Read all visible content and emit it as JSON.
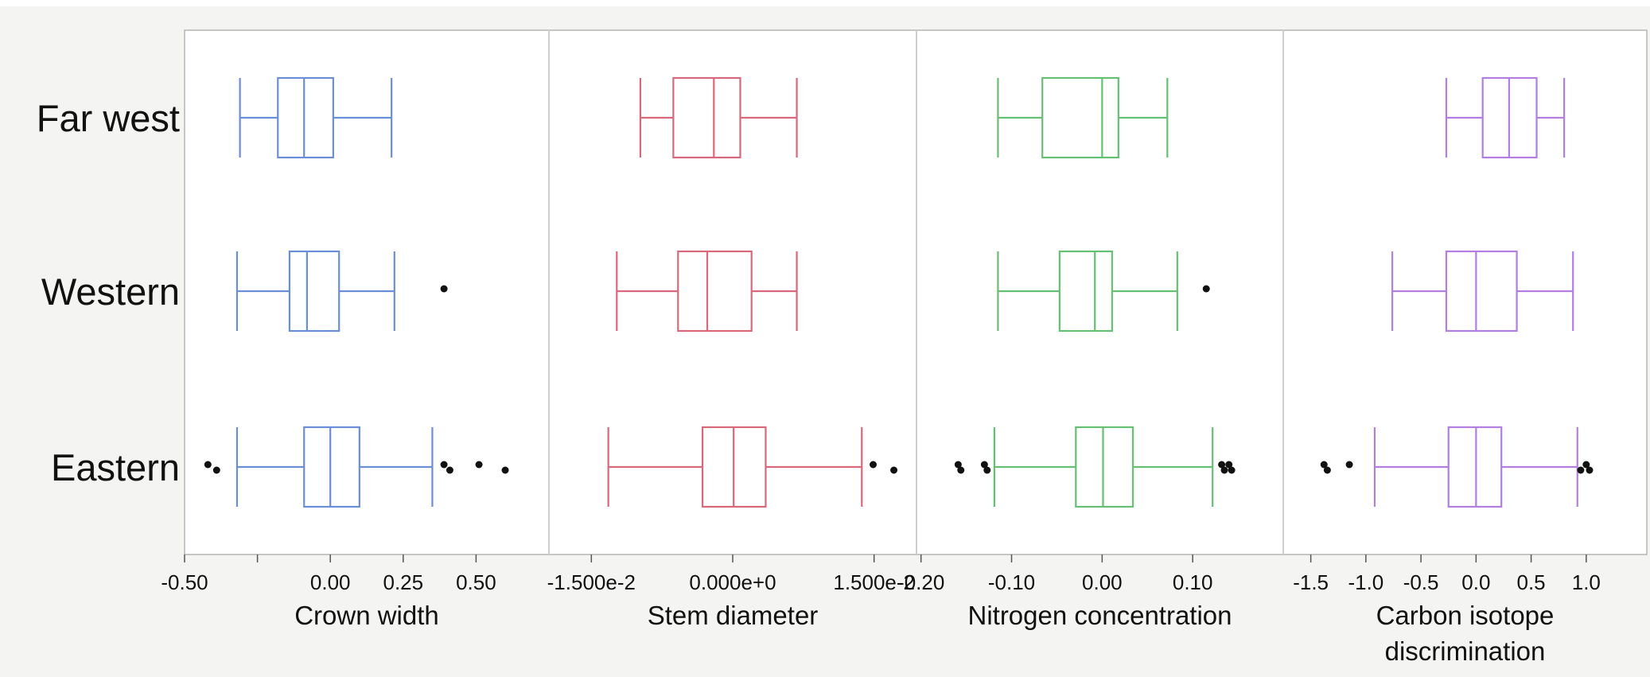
{
  "chart_data": {
    "type": "boxplot",
    "categories": [
      "Far west",
      "Western",
      "Eastern"
    ],
    "panels": [
      {
        "xlabel": [
          "Crown width"
        ],
        "color": "#6b8fd6",
        "xlim": [
          -0.5,
          0.75
        ],
        "ticks": [
          {
            "v": -0.5,
            "label": "-0.50"
          },
          {
            "v": -0.25,
            "label": ""
          },
          {
            "v": 0.0,
            "label": "0.00"
          },
          {
            "v": 0.25,
            "label": "0.25"
          },
          {
            "v": 0.5,
            "label": "0.50"
          }
        ],
        "boxes": [
          {
            "whisker_low": -0.31,
            "q1": -0.18,
            "median": -0.09,
            "q3": 0.01,
            "whisker_high": 0.21,
            "outliers": []
          },
          {
            "whisker_low": -0.32,
            "q1": -0.14,
            "median": -0.08,
            "q3": 0.03,
            "whisker_high": 0.22,
            "outliers": [
              0.39
            ]
          },
          {
            "whisker_low": -0.32,
            "q1": -0.09,
            "median": 0.0,
            "q3": 0.1,
            "whisker_high": 0.35,
            "outliers": [
              -0.42,
              -0.39,
              0.39,
              0.41,
              0.51,
              0.6
            ]
          }
        ]
      },
      {
        "xlabel": [
          "Stem diameter"
        ],
        "color": "#d9687a",
        "xlim": [
          -0.0195,
          0.0195
        ],
        "ticks": [
          {
            "v": -0.015,
            "label": "-1.500e-2"
          },
          {
            "v": 0.0,
            "label": "0.000e+0"
          },
          {
            "v": 0.015,
            "label": "1.500e-2"
          }
        ],
        "boxes": [
          {
            "whisker_low": -0.0098,
            "q1": -0.0063,
            "median": -0.002,
            "q3": 0.0008,
            "whisker_high": 0.0068,
            "outliers": []
          },
          {
            "whisker_low": -0.0123,
            "q1": -0.0058,
            "median": -0.0027,
            "q3": 0.002,
            "whisker_high": 0.0068,
            "outliers": []
          },
          {
            "whisker_low": -0.0132,
            "q1": -0.0032,
            "median": 0.0001,
            "q3": 0.0035,
            "whisker_high": 0.0137,
            "outliers": [
              0.0149,
              0.0171
            ]
          }
        ]
      },
      {
        "xlabel": [
          "Nitrogen concentration"
        ],
        "color": "#66c073",
        "xlim": [
          -0.205,
          0.2
        ],
        "ticks": [
          {
            "v": -0.2,
            "label": "-0.20"
          },
          {
            "v": -0.1,
            "label": "-0.10"
          },
          {
            "v": 0.0,
            "label": "0.00"
          },
          {
            "v": 0.1,
            "label": "0.10"
          }
        ],
        "boxes": [
          {
            "whisker_low": -0.115,
            "q1": -0.066,
            "median": 0.0,
            "q3": 0.018,
            "whisker_high": 0.072,
            "outliers": []
          },
          {
            "whisker_low": -0.115,
            "q1": -0.047,
            "median": -0.008,
            "q3": 0.011,
            "whisker_high": 0.083,
            "outliers": [
              0.115
            ]
          },
          {
            "whisker_low": -0.119,
            "q1": -0.029,
            "median": 0.001,
            "q3": 0.034,
            "whisker_high": 0.122,
            "outliers": [
              -0.159,
              -0.156,
              -0.13,
              -0.127,
              0.132,
              0.135,
              0.14,
              0.143
            ]
          }
        ]
      },
      {
        "xlabel": [
          "Carbon isotope",
          "discrimination"
        ],
        "color": "#b27ee0",
        "xlim": [
          -1.75,
          1.55
        ],
        "ticks": [
          {
            "v": -1.5,
            "label": "-1.5"
          },
          {
            "v": -1.0,
            "label": "-1.0"
          },
          {
            "v": -0.5,
            "label": "-0.5"
          },
          {
            "v": 0.0,
            "label": "0.0"
          },
          {
            "v": 0.5,
            "label": "0.5"
          },
          {
            "v": 1.0,
            "label": "1.0"
          }
        ],
        "boxes": [
          {
            "whisker_low": -0.27,
            "q1": 0.06,
            "median": 0.3,
            "q3": 0.55,
            "whisker_high": 0.8,
            "outliers": []
          },
          {
            "whisker_low": -0.76,
            "q1": -0.27,
            "median": 0.0,
            "q3": 0.37,
            "whisker_high": 0.88,
            "outliers": []
          },
          {
            "whisker_low": -0.92,
            "q1": -0.25,
            "median": 0.0,
            "q3": 0.23,
            "whisker_high": 0.92,
            "outliers": [
              -1.38,
              -1.35,
              -1.15,
              0.95,
              1.0,
              1.03
            ]
          }
        ]
      }
    ]
  }
}
